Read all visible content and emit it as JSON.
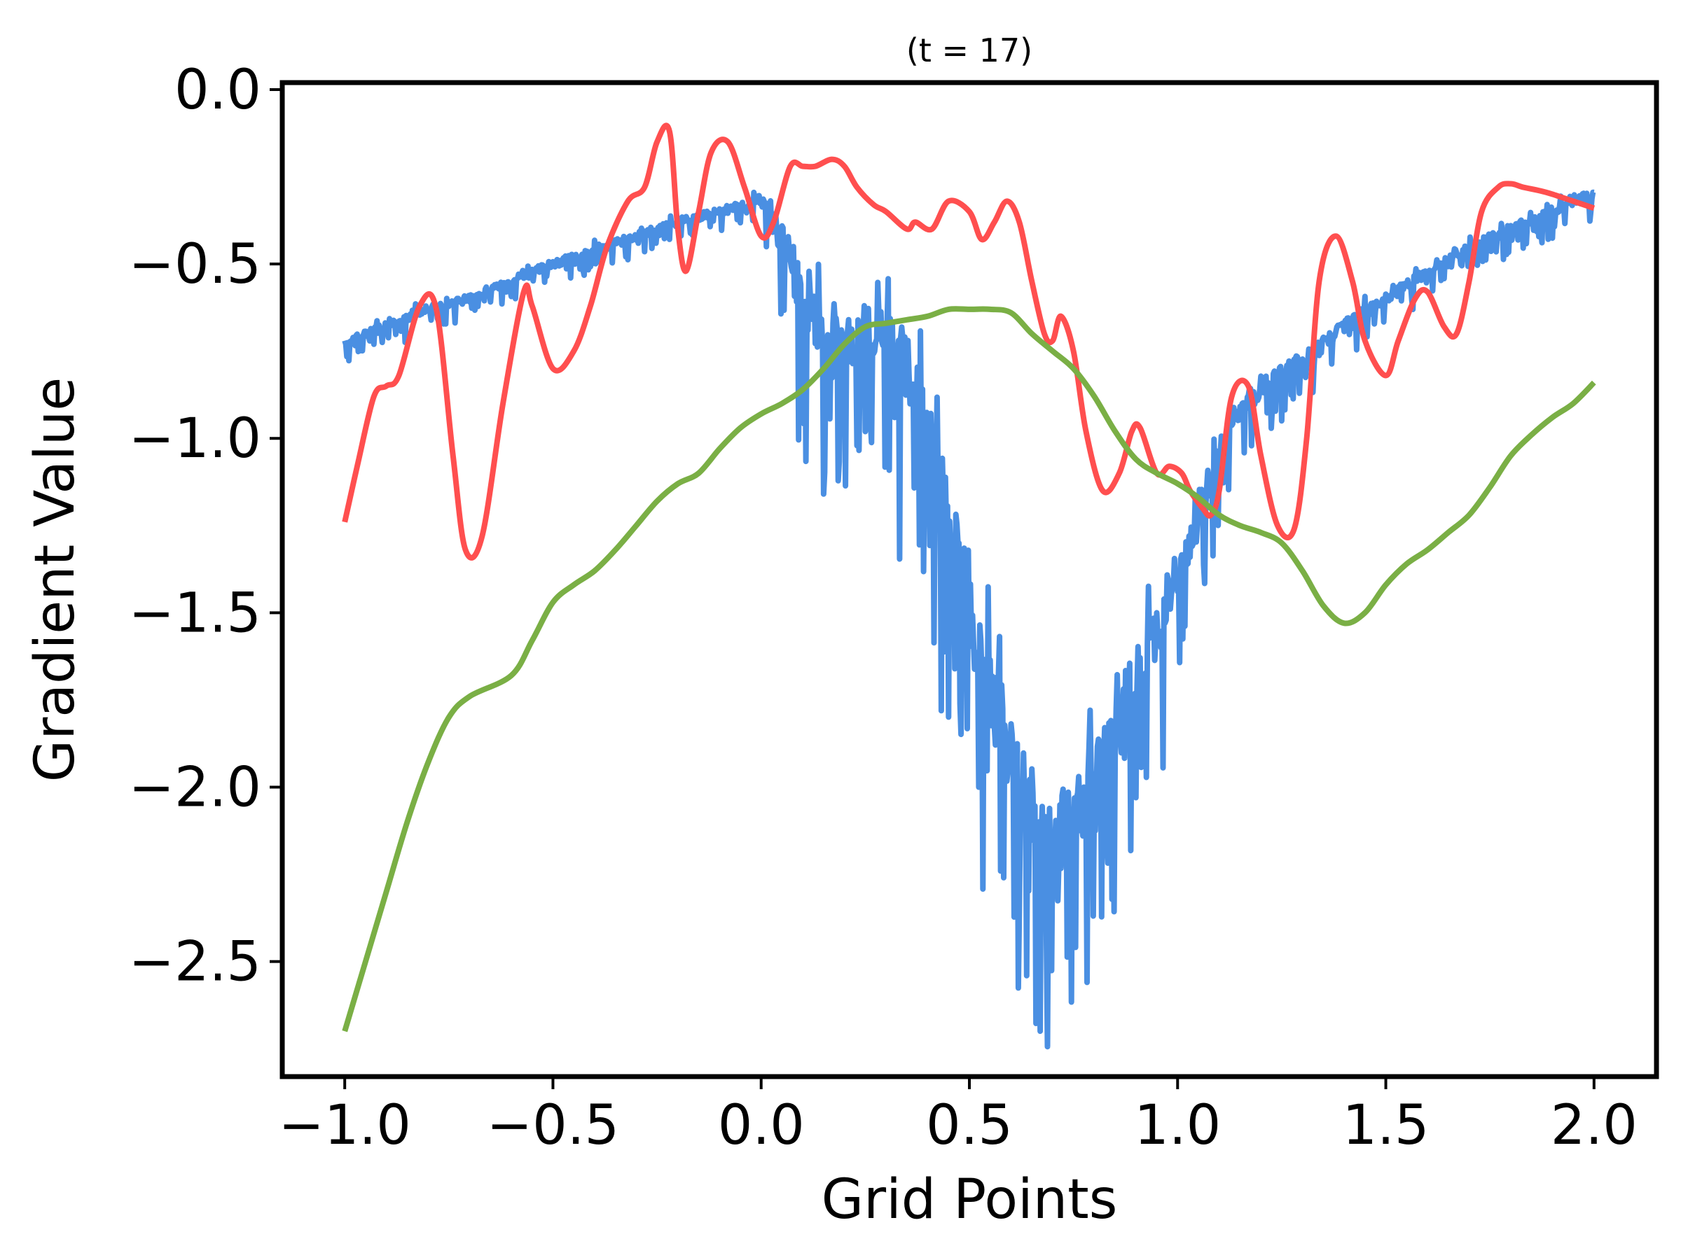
{
  "chart_data": {
    "type": "line",
    "title": "(t = 17)",
    "xlabel": "Grid Points",
    "ylabel": "Gradient Value",
    "xlim": [
      -1.15,
      2.15
    ],
    "ylim": [
      -2.83,
      0.02
    ],
    "xticks": [
      -1.0,
      -0.5,
      0.0,
      0.5,
      1.0,
      1.5,
      2.0
    ],
    "xtick_labels": [
      "−1.0",
      "−0.5",
      "0.0",
      "0.5",
      "1.0",
      "1.5",
      "2.0"
    ],
    "yticks": [
      0.0,
      -0.5,
      -1.0,
      -1.5,
      -2.0,
      -2.5
    ],
    "ytick_labels": [
      "0.0",
      "−0.5",
      "−1.0",
      "−1.5",
      "−2.0",
      "−2.5"
    ],
    "grid": false,
    "legend": "none",
    "series": [
      {
        "color": "#4A8FE2",
        "style": "noisy",
        "x": [
          -1.0,
          -0.9,
          -0.8,
          -0.7,
          -0.6,
          -0.5,
          -0.4,
          -0.3,
          -0.2,
          -0.1,
          0.0,
          0.05,
          0.1,
          0.15,
          0.2,
          0.25,
          0.3,
          0.35,
          0.4,
          0.45,
          0.5,
          0.55,
          0.6,
          0.65,
          0.7,
          0.75,
          0.8,
          0.85,
          0.9,
          0.95,
          1.0,
          1.05,
          1.1,
          1.15,
          1.2,
          1.3,
          1.4,
          1.5,
          1.6,
          1.7,
          1.8,
          1.9,
          2.0
        ],
        "values": [
          -0.72,
          -0.68,
          -0.63,
          -0.6,
          -0.55,
          -0.5,
          -0.46,
          -0.42,
          -0.38,
          -0.35,
          -0.32,
          -0.42,
          -0.6,
          -0.75,
          -0.72,
          -0.68,
          -0.7,
          -0.8,
          -1.0,
          -1.25,
          -1.5,
          -1.72,
          -1.9,
          -2.05,
          -2.15,
          -2.1,
          -1.95,
          -1.85,
          -1.7,
          -1.55,
          -1.38,
          -1.22,
          -1.05,
          -0.92,
          -0.85,
          -0.78,
          -0.68,
          -0.6,
          -0.52,
          -0.45,
          -0.4,
          -0.35,
          -0.3
        ],
        "noise": [
          0.04,
          0.04,
          0.04,
          0.04,
          0.04,
          0.04,
          0.04,
          0.04,
          0.04,
          0.04,
          0.06,
          0.2,
          0.3,
          0.35,
          0.3,
          0.3,
          0.35,
          0.35,
          0.4,
          0.4,
          0.4,
          0.4,
          0.4,
          0.4,
          0.4,
          0.4,
          0.35,
          0.35,
          0.35,
          0.3,
          0.25,
          0.2,
          0.15,
          0.12,
          0.1,
          0.08,
          0.07,
          0.06,
          0.05,
          0.05,
          0.05,
          0.05,
          0.05
        ]
      },
      {
        "color": "#FF4F4F",
        "style": "smooth",
        "x": [
          -1.0,
          -0.97,
          -0.93,
          -0.9,
          -0.87,
          -0.82,
          -0.78,
          -0.74,
          -0.71,
          -0.67,
          -0.62,
          -0.57,
          -0.55,
          -0.5,
          -0.45,
          -0.41,
          -0.37,
          -0.32,
          -0.28,
          -0.25,
          -0.22,
          -0.2,
          -0.18,
          -0.15,
          -0.12,
          -0.08,
          -0.04,
          0.0,
          0.03,
          0.07,
          0.1,
          0.13,
          0.17,
          0.2,
          0.23,
          0.27,
          0.3,
          0.35,
          0.37,
          0.41,
          0.45,
          0.5,
          0.53,
          0.56,
          0.59,
          0.62,
          0.65,
          0.68,
          0.7,
          0.72,
          0.75,
          0.78,
          0.82,
          0.86,
          0.89,
          0.91,
          0.95,
          0.98,
          1.01,
          1.03,
          1.06,
          1.08,
          1.1,
          1.13,
          1.17,
          1.2,
          1.24,
          1.28,
          1.31,
          1.34,
          1.38,
          1.42,
          1.45,
          1.5,
          1.53,
          1.57,
          1.6,
          1.64,
          1.67,
          1.7,
          1.73,
          1.77,
          1.8,
          1.83,
          1.87,
          1.9,
          1.95,
          2.0
        ],
        "values": [
          -1.24,
          -1.08,
          -0.88,
          -0.85,
          -0.82,
          -0.62,
          -0.63,
          -1.05,
          -1.32,
          -1.28,
          -0.9,
          -0.58,
          -0.62,
          -0.8,
          -0.75,
          -0.62,
          -0.45,
          -0.32,
          -0.28,
          -0.15,
          -0.12,
          -0.4,
          -0.52,
          -0.35,
          -0.18,
          -0.15,
          -0.28,
          -0.42,
          -0.38,
          -0.22,
          -0.22,
          -0.22,
          -0.2,
          -0.22,
          -0.28,
          -0.33,
          -0.35,
          -0.4,
          -0.38,
          -0.4,
          -0.32,
          -0.35,
          -0.43,
          -0.38,
          -0.32,
          -0.38,
          -0.55,
          -0.7,
          -0.72,
          -0.65,
          -0.75,
          -0.98,
          -1.15,
          -1.1,
          -0.98,
          -0.97,
          -1.1,
          -1.08,
          -1.1,
          -1.15,
          -1.2,
          -1.22,
          -1.15,
          -0.88,
          -0.85,
          -1.05,
          -1.25,
          -1.26,
          -1.0,
          -0.55,
          -0.42,
          -0.55,
          -0.72,
          -0.82,
          -0.72,
          -0.6,
          -0.58,
          -0.68,
          -0.7,
          -0.55,
          -0.35,
          -0.28,
          -0.27,
          -0.28,
          -0.29,
          -0.3,
          -0.32,
          -0.34
        ]
      },
      {
        "color": "#7AAF45",
        "style": "smooth",
        "x": [
          -1.0,
          -0.95,
          -0.9,
          -0.85,
          -0.8,
          -0.75,
          -0.7,
          -0.6,
          -0.55,
          -0.5,
          -0.45,
          -0.4,
          -0.35,
          -0.3,
          -0.25,
          -0.2,
          -0.15,
          -0.1,
          -0.05,
          0.0,
          0.05,
          0.1,
          0.15,
          0.2,
          0.25,
          0.3,
          0.35,
          0.4,
          0.45,
          0.5,
          0.55,
          0.6,
          0.65,
          0.7,
          0.75,
          0.8,
          0.85,
          0.9,
          0.95,
          1.0,
          1.05,
          1.1,
          1.15,
          1.2,
          1.25,
          1.3,
          1.35,
          1.4,
          1.45,
          1.5,
          1.55,
          1.6,
          1.65,
          1.7,
          1.75,
          1.8,
          1.85,
          1.9,
          1.95,
          2.0
        ],
        "values": [
          -2.7,
          -2.5,
          -2.3,
          -2.1,
          -1.93,
          -1.8,
          -1.74,
          -1.68,
          -1.58,
          -1.47,
          -1.42,
          -1.38,
          -1.32,
          -1.25,
          -1.18,
          -1.13,
          -1.1,
          -1.03,
          -0.97,
          -0.93,
          -0.9,
          -0.86,
          -0.8,
          -0.73,
          -0.68,
          -0.67,
          -0.66,
          -0.65,
          -0.63,
          -0.63,
          -0.63,
          -0.64,
          -0.7,
          -0.75,
          -0.8,
          -0.88,
          -0.98,
          -1.06,
          -1.1,
          -1.13,
          -1.17,
          -1.22,
          -1.25,
          -1.27,
          -1.3,
          -1.38,
          -1.48,
          -1.53,
          -1.5,
          -1.42,
          -1.36,
          -1.32,
          -1.27,
          -1.22,
          -1.14,
          -1.05,
          -0.99,
          -0.94,
          -0.9,
          -0.84
        ]
      }
    ]
  }
}
